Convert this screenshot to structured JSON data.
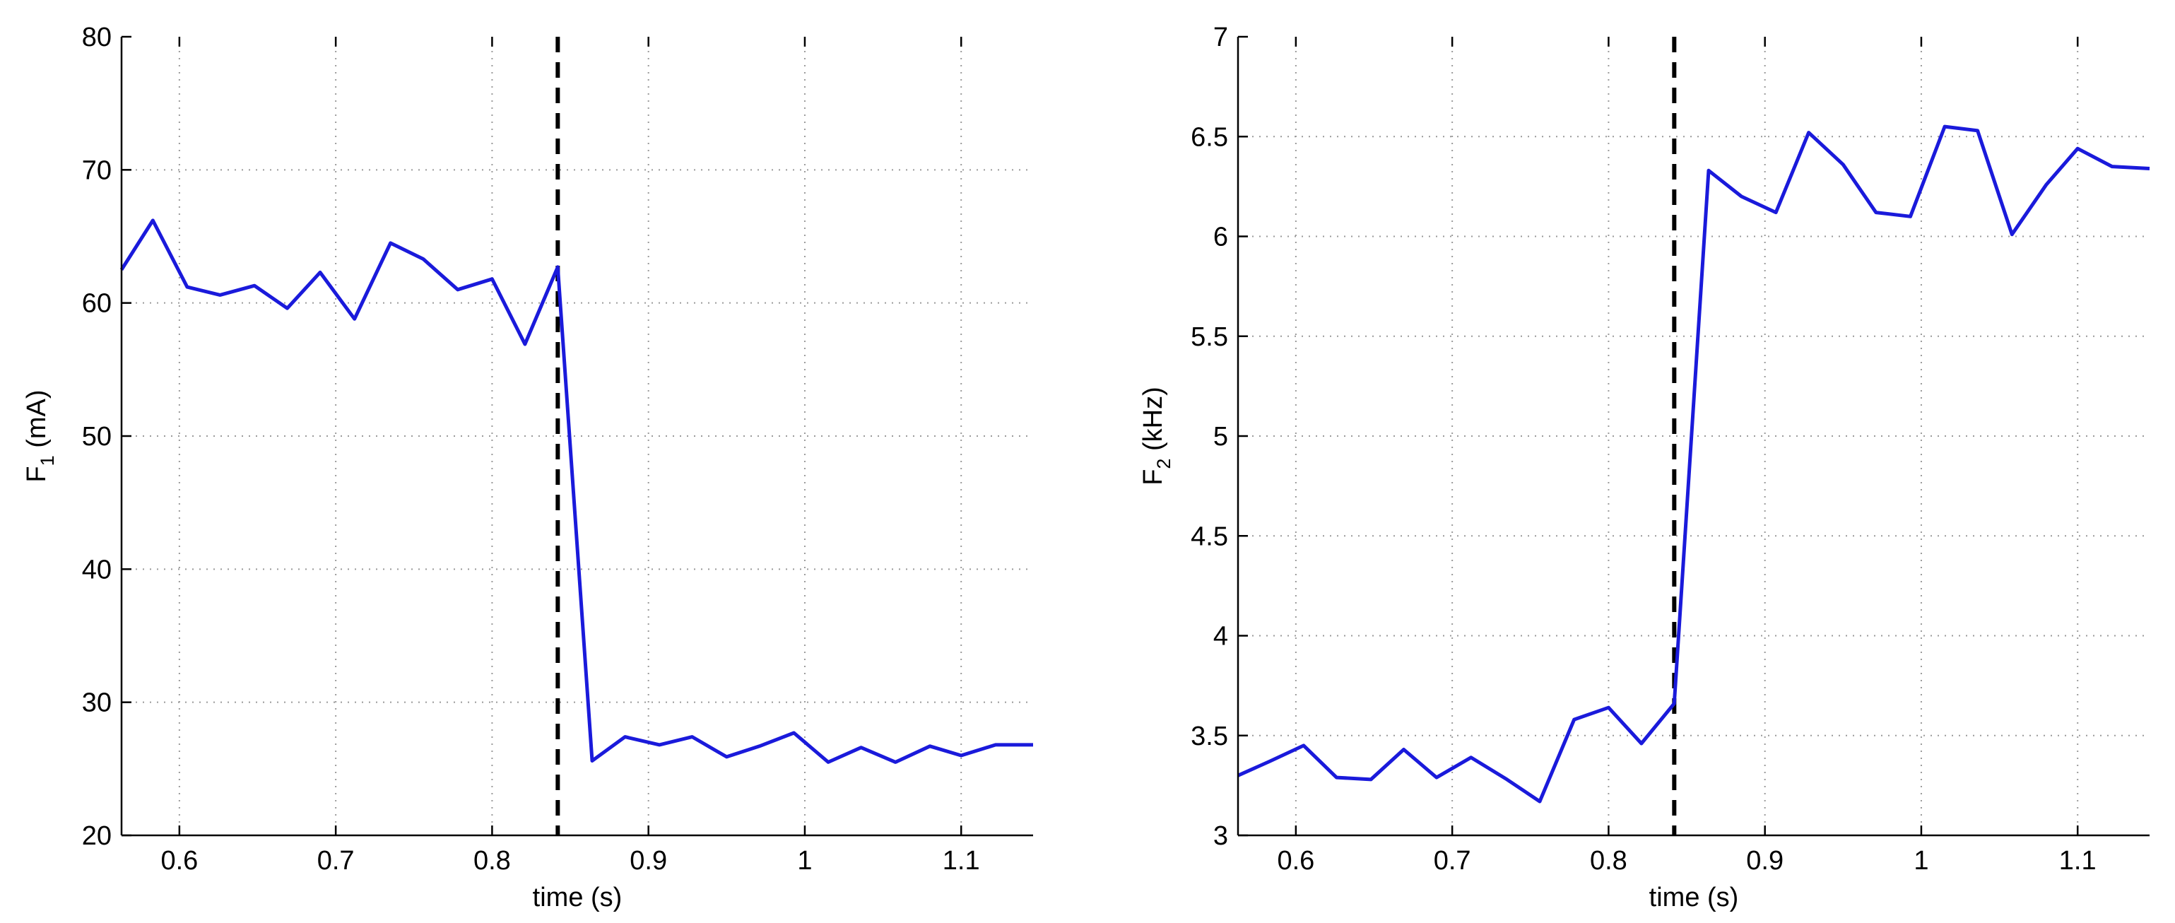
{
  "chart_data": [
    {
      "type": "line",
      "xlabel": "time (s)",
      "ylabel": {
        "base": "F",
        "sub": "1",
        "unit": " (mA)"
      },
      "xlim": [
        0.563,
        1.146
      ],
      "ylim": [
        20,
        80
      ],
      "xticks": [
        0.6,
        0.7,
        0.8,
        0.9,
        1,
        1.1
      ],
      "xtick_labels": [
        "0.6",
        "0.7",
        "0.8",
        "0.9",
        "1",
        "1.1"
      ],
      "yticks": [
        20,
        30,
        40,
        50,
        60,
        70,
        80
      ],
      "ytick_labels": [
        "20",
        "30",
        "40",
        "50",
        "60",
        "70",
        "80"
      ],
      "grid": true,
      "line_color": "#1a1adb",
      "marker_line": {
        "x": 0.842,
        "color": "#000000",
        "style": "dashed"
      },
      "x": [
        0.563,
        0.583,
        0.605,
        0.626,
        0.648,
        0.669,
        0.69,
        0.712,
        0.735,
        0.756,
        0.778,
        0.8,
        0.821,
        0.842,
        0.864,
        0.885,
        0.907,
        0.928,
        0.95,
        0.971,
        0.993,
        1.015,
        1.036,
        1.058,
        1.08,
        1.1,
        1.122,
        1.146
      ],
      "y": [
        62.5,
        66.2,
        61.2,
        60.6,
        61.3,
        59.6,
        62.3,
        58.8,
        64.5,
        63.3,
        61.0,
        61.8,
        56.9,
        62.7,
        25.6,
        27.4,
        26.8,
        27.4,
        25.9,
        26.7,
        27.7,
        25.5,
        26.6,
        25.5,
        26.7,
        26.0,
        26.8,
        26.8
      ]
    },
    {
      "type": "line",
      "xlabel": "time (s)",
      "ylabel": {
        "base": "F",
        "sub": "2",
        "unit": " (kHz)"
      },
      "xlim": [
        0.563,
        1.146
      ],
      "ylim": [
        3,
        7
      ],
      "xticks": [
        0.6,
        0.7,
        0.8,
        0.9,
        1,
        1.1
      ],
      "xtick_labels": [
        "0.6",
        "0.7",
        "0.8",
        "0.9",
        "1",
        "1.1"
      ],
      "yticks": [
        3,
        3.5,
        4,
        4.5,
        5,
        5.5,
        6,
        6.5,
        7
      ],
      "ytick_labels": [
        "3",
        "3.5",
        "4",
        "4.5",
        "5",
        "5.5",
        "6",
        "6.5",
        "7"
      ],
      "grid": true,
      "line_color": "#1a1adb",
      "marker_line": {
        "x": 0.842,
        "color": "#000000",
        "style": "dashed"
      },
      "x": [
        0.563,
        0.583,
        0.605,
        0.626,
        0.648,
        0.669,
        0.69,
        0.712,
        0.735,
        0.756,
        0.778,
        0.8,
        0.821,
        0.842,
        0.864,
        0.885,
        0.907,
        0.928,
        0.95,
        0.971,
        0.993,
        1.015,
        1.036,
        1.058,
        1.08,
        1.1,
        1.122,
        1.146
      ],
      "y": [
        3.3,
        3.37,
        3.45,
        3.29,
        3.28,
        3.43,
        3.29,
        3.39,
        3.28,
        3.17,
        3.58,
        3.64,
        3.46,
        3.66,
        6.33,
        6.2,
        6.12,
        6.52,
        6.36,
        6.12,
        6.1,
        6.55,
        6.53,
        6.01,
        6.26,
        6.44,
        6.35,
        6.34
      ]
    }
  ]
}
